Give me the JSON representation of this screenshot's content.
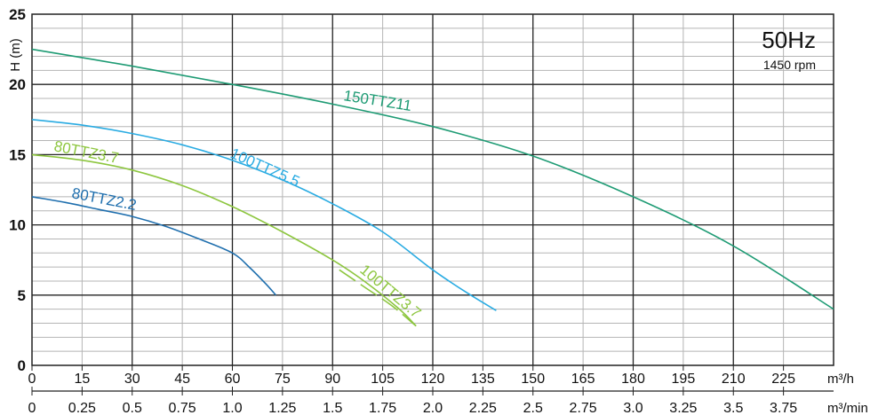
{
  "chart_data": {
    "type": "line",
    "ylabel": "H (m)",
    "x_unit_primary": "m³/h",
    "x_unit_secondary": "m³/min",
    "xlim": [
      0,
      240
    ],
    "ylim": [
      0,
      25
    ],
    "x_ticks": [
      0,
      15,
      30,
      45,
      60,
      75,
      90,
      105,
      120,
      135,
      150,
      165,
      180,
      195,
      210,
      225
    ],
    "x_ticks_secondary": [
      "0",
      "0.25",
      "0.5",
      "0.75",
      "1.0",
      "1.25",
      "1.5",
      "1.75",
      "2.0",
      "2.25",
      "2.5",
      "2.75",
      "3.0",
      "3.25",
      "3.5",
      "3.75"
    ],
    "y_ticks": [
      0,
      5,
      10,
      15,
      20,
      25
    ],
    "frequency_label": "50Hz",
    "speed_label": "1450 rpm",
    "grid": true,
    "series": [
      {
        "name": "80TTZ2.2",
        "color": "#1f6fae",
        "x": [
          0,
          10,
          20,
          30,
          40,
          50,
          60,
          65,
          70,
          73
        ],
        "y": [
          12.0,
          11.6,
          11.1,
          10.6,
          9.9,
          9.0,
          8.0,
          7.0,
          5.8,
          5.0
        ]
      },
      {
        "name": "80TTZ3.7",
        "color": "#8dc63f",
        "x": [
          0,
          15,
          30,
          45,
          60,
          75,
          90,
          100,
          110,
          115
        ],
        "y": [
          15.0,
          14.6,
          13.9,
          12.8,
          11.3,
          9.5,
          7.5,
          5.9,
          4.0,
          2.8
        ]
      },
      {
        "name": "100TTZ3.7",
        "color": "#8dc63f",
        "dashed": true,
        "x": [
          92,
          100,
          108,
          115
        ],
        "y": [
          6.8,
          5.5,
          4.2,
          2.8
        ]
      },
      {
        "name": "100TTZ5.5",
        "color": "#29abe2",
        "x": [
          0,
          15,
          30,
          45,
          60,
          75,
          90,
          105,
          120,
          130,
          139
        ],
        "y": [
          17.5,
          17.1,
          16.5,
          15.7,
          14.6,
          13.2,
          11.5,
          9.5,
          6.8,
          5.2,
          3.9
        ]
      },
      {
        "name": "150TTZ11",
        "color": "#1e9b74",
        "x": [
          0,
          30,
          60,
          90,
          120,
          150,
          180,
          210,
          240
        ],
        "y": [
          22.5,
          21.3,
          20.0,
          18.6,
          17.0,
          14.9,
          12.0,
          8.5,
          4.0
        ]
      }
    ]
  }
}
